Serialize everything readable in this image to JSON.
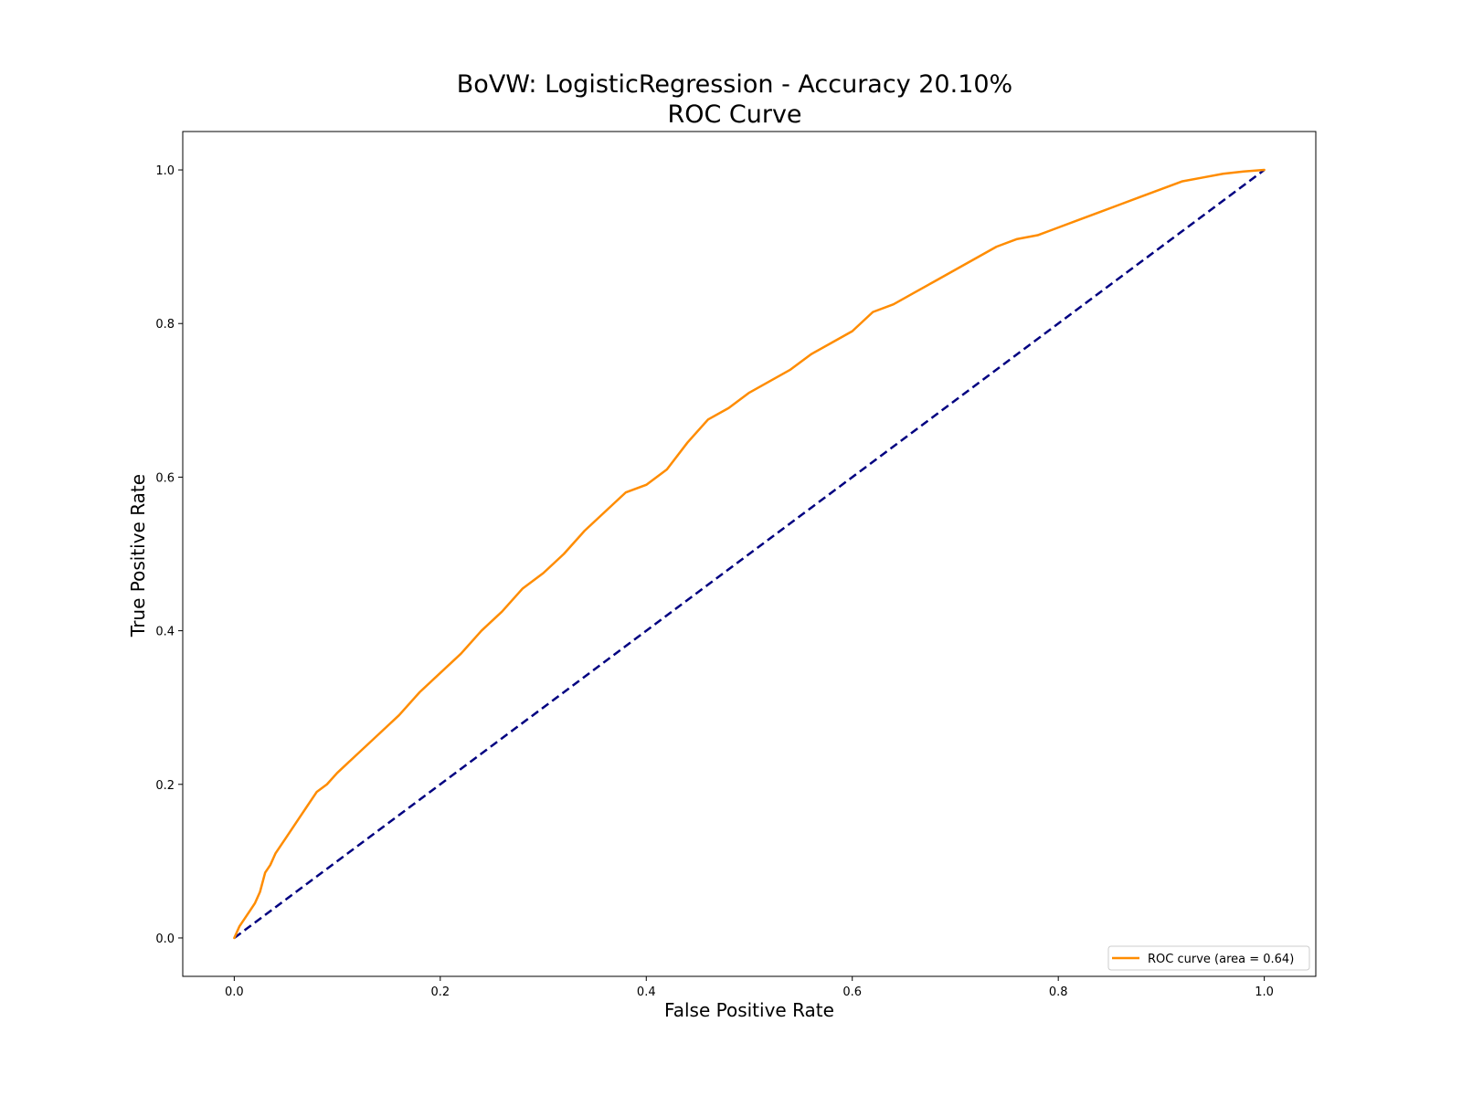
{
  "chart_data": {
    "type": "line",
    "title": "BoVW: LogisticRegression - Accuracy 20.10%",
    "subtitle": "ROC Curve",
    "xlabel": "False Positive Rate",
    "ylabel": "True Positive Rate",
    "xlim": [
      -0.05,
      1.05
    ],
    "ylim": [
      -0.05,
      1.05
    ],
    "x_ticks": [
      "0.0",
      "0.2",
      "0.4",
      "0.6",
      "0.8",
      "1.0"
    ],
    "y_ticks": [
      "0.0",
      "0.2",
      "0.4",
      "0.6",
      "0.8",
      "1.0"
    ],
    "grid": false,
    "legend_position": "lower right",
    "series": [
      {
        "name": "ROC curve (area = 0.64)",
        "color": "#ff8c00",
        "style": "solid",
        "x": [
          0.0,
          0.005,
          0.01,
          0.015,
          0.02,
          0.025,
          0.03,
          0.035,
          0.04,
          0.05,
          0.06,
          0.07,
          0.08,
          0.09,
          0.1,
          0.12,
          0.14,
          0.16,
          0.18,
          0.2,
          0.22,
          0.24,
          0.26,
          0.28,
          0.3,
          0.32,
          0.34,
          0.36,
          0.38,
          0.4,
          0.42,
          0.44,
          0.46,
          0.48,
          0.5,
          0.52,
          0.54,
          0.56,
          0.58,
          0.6,
          0.62,
          0.64,
          0.66,
          0.68,
          0.7,
          0.72,
          0.74,
          0.76,
          0.78,
          0.8,
          0.82,
          0.84,
          0.86,
          0.88,
          0.9,
          0.92,
          0.94,
          0.96,
          0.98,
          1.0
        ],
        "y": [
          0.0,
          0.015,
          0.025,
          0.035,
          0.045,
          0.06,
          0.085,
          0.095,
          0.11,
          0.13,
          0.15,
          0.17,
          0.19,
          0.2,
          0.215,
          0.24,
          0.265,
          0.29,
          0.32,
          0.345,
          0.37,
          0.4,
          0.425,
          0.455,
          0.475,
          0.5,
          0.53,
          0.555,
          0.58,
          0.59,
          0.61,
          0.645,
          0.675,
          0.69,
          0.71,
          0.725,
          0.74,
          0.76,
          0.775,
          0.79,
          0.815,
          0.825,
          0.84,
          0.855,
          0.87,
          0.885,
          0.9,
          0.91,
          0.915,
          0.925,
          0.935,
          0.945,
          0.955,
          0.965,
          0.975,
          0.985,
          0.99,
          0.995,
          0.998,
          1.0
        ]
      },
      {
        "name": "",
        "color": "#000080",
        "style": "dashed",
        "x": [
          0.0,
          1.0
        ],
        "y": [
          0.0,
          1.0
        ]
      }
    ]
  }
}
